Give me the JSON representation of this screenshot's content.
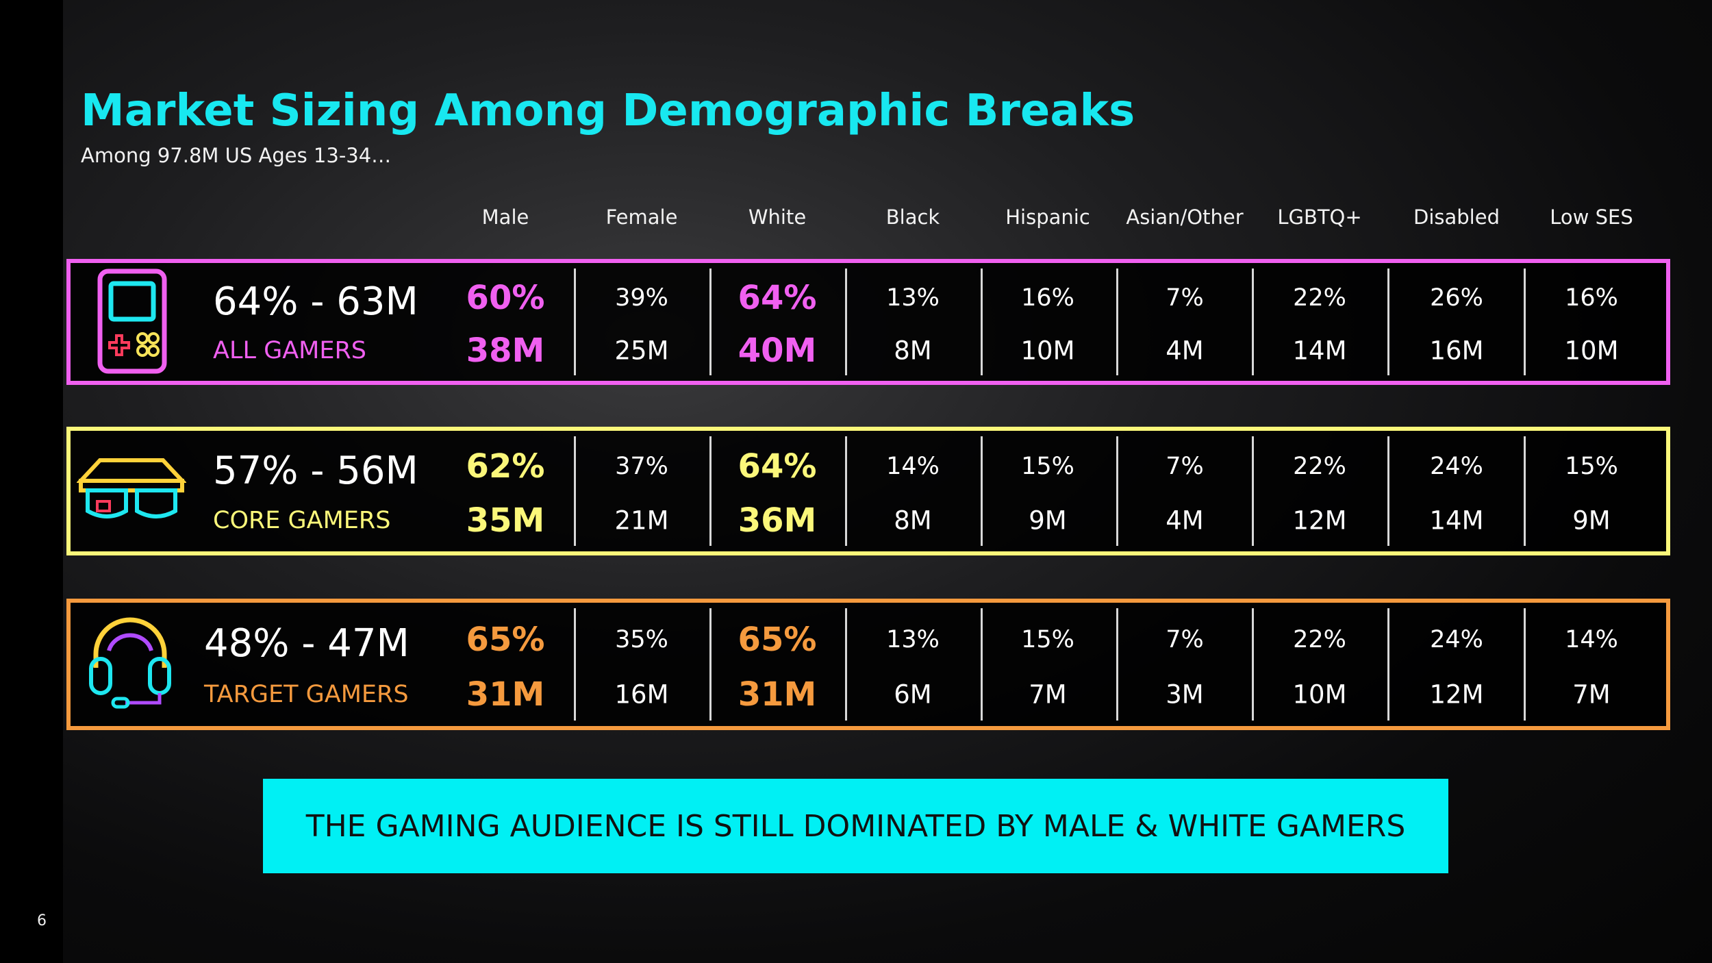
{
  "header": {
    "title": "Market Sizing Among Demographic Breaks",
    "subtitle": "Among 97.8M US Ages 13-34…"
  },
  "table": {
    "columns": [
      "Male",
      "Female",
      "White",
      "Black",
      "Hispanic",
      "Asian/Other",
      "LGBTQ+",
      "Disabled",
      "Low SES"
    ],
    "rows": [
      {
        "summary": "64% - 63M",
        "label": "ALL GAMERS",
        "color": "#f060f0",
        "cells": [
          [
            "60%",
            "38M"
          ],
          [
            "39%",
            "25M"
          ],
          [
            "64%",
            "40M"
          ],
          [
            "13%",
            "8M"
          ],
          [
            "16%",
            "10M"
          ],
          [
            "7%",
            "4M"
          ],
          [
            "22%",
            "14M"
          ],
          [
            "26%",
            "16M"
          ],
          [
            "16%",
            "10M"
          ]
        ]
      },
      {
        "summary": "57% - 56M",
        "label": "CORE GAMERS",
        "color": "#fbf77a",
        "cells": [
          [
            "62%",
            "35M"
          ],
          [
            "37%",
            "21M"
          ],
          [
            "64%",
            "36M"
          ],
          [
            "14%",
            "8M"
          ],
          [
            "15%",
            "9M"
          ],
          [
            "7%",
            "4M"
          ],
          [
            "22%",
            "12M"
          ],
          [
            "24%",
            "14M"
          ],
          [
            "15%",
            "9M"
          ]
        ]
      },
      {
        "summary": "48% - 47M",
        "label": "TARGET GAMERS",
        "color": "#f59a3e",
        "cells": [
          [
            "65%",
            "31M"
          ],
          [
            "35%",
            "16M"
          ],
          [
            "65%",
            "31M"
          ],
          [
            "13%",
            "6M"
          ],
          [
            "15%",
            "7M"
          ],
          [
            "7%",
            "3M"
          ],
          [
            "22%",
            "10M"
          ],
          [
            "24%",
            "12M"
          ],
          [
            "14%",
            "7M"
          ]
        ]
      }
    ]
  },
  "callout": "THE GAMING AUDIENCE IS STILL DOMINATED BY MALE & WHITE GAMERS",
  "page_number": "6"
}
